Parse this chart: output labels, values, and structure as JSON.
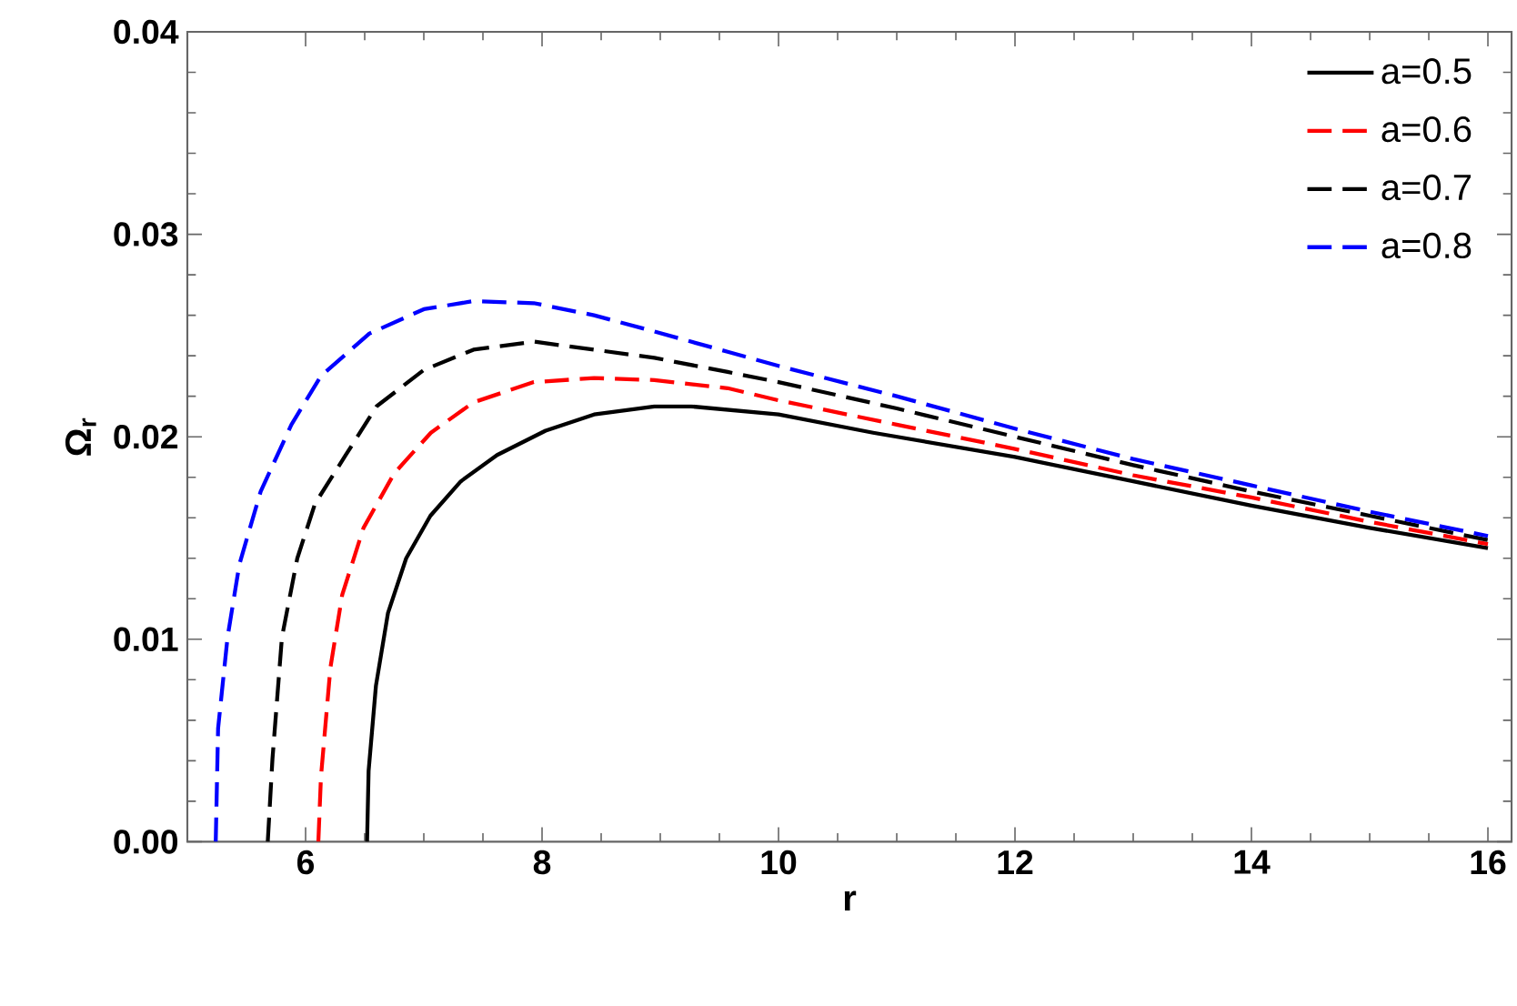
{
  "chart_data": {
    "type": "line",
    "xlabel": "r",
    "ylabel": "Ω$_{r}$",
    "xlim": [
      5,
      16.2
    ],
    "ylim": [
      0,
      0.04
    ],
    "xticks": [
      6,
      8,
      10,
      12,
      14,
      16
    ],
    "yticks": [
      {
        "value": 0,
        "label": "0.00"
      },
      {
        "value": 0.01,
        "label": "0.01"
      },
      {
        "value": 0.02,
        "label": "0.02"
      },
      {
        "value": 0.03,
        "label": "0.03"
      },
      {
        "value": 0.04,
        "label": "0.04"
      }
    ],
    "grid": false,
    "legend": "top right",
    "marker": "none",
    "series": [
      {
        "name": "a=0.5",
        "color": "#000000",
        "line_style": "solid",
        "x": [
          6.52,
          6.533,
          6.595,
          6.697,
          6.851,
          7.056,
          7.313,
          7.62,
          8.03,
          8.44,
          8.95,
          9.26,
          10,
          10.8,
          12,
          13,
          14,
          15,
          16
        ],
        "values": [
          0,
          0.0035,
          0.0077,
          0.0113,
          0.014,
          0.0161,
          0.0178,
          0.0191,
          0.0203,
          0.0211,
          0.0215,
          0.0215,
          0.0211,
          0.0202,
          0.019,
          0.0178,
          0.0166,
          0.0155,
          0.0145
        ]
      },
      {
        "name": "a=0.6",
        "color": "#ff0000",
        "line_style": "dashed",
        "x": [
          6.108,
          6.13,
          6.21,
          6.31,
          6.49,
          6.75,
          7.06,
          7.42,
          7.93,
          8.44,
          8.95,
          9.57,
          10,
          11,
          12,
          13,
          14,
          15,
          16
        ],
        "values": [
          0,
          0.0032,
          0.0086,
          0.0122,
          0.0155,
          0.0182,
          0.0202,
          0.0217,
          0.0227,
          0.0229,
          0.0228,
          0.0224,
          0.0218,
          0.0206,
          0.0194,
          0.0181,
          0.017,
          0.0158,
          0.0147
        ]
      },
      {
        "name": "a=0.7",
        "color": "#000000",
        "line_style": "dashed",
        "x": [
          5.68,
          5.72,
          5.8,
          5.93,
          6.08,
          6.34,
          6.6,
          7.0,
          7.42,
          7.93,
          8.44,
          8.95,
          9.57,
          10,
          11,
          12,
          13,
          14,
          15,
          16
        ],
        "values": [
          0,
          0.0041,
          0.0101,
          0.014,
          0.0167,
          0.0191,
          0.0215,
          0.0233,
          0.0243,
          0.0247,
          0.0243,
          0.0239,
          0.0232,
          0.0227,
          0.0214,
          0.02,
          0.0186,
          0.0173,
          0.0161,
          0.0149
        ]
      },
      {
        "name": "a=0.8",
        "color": "#0000ff",
        "line_style": "dashed",
        "x": [
          5.24,
          5.26,
          5.34,
          5.44,
          5.62,
          5.88,
          6.13,
          6.54,
          7.0,
          7.42,
          7.93,
          8.44,
          8.95,
          9.57,
          10,
          11,
          12,
          13,
          14,
          15,
          16
        ],
        "values": [
          0,
          0.0056,
          0.0101,
          0.0137,
          0.0173,
          0.0206,
          0.023,
          0.0251,
          0.0263,
          0.0267,
          0.0266,
          0.026,
          0.0252,
          0.0242,
          0.0235,
          0.022,
          0.0204,
          0.0189,
          0.0176,
          0.0163,
          0.0151
        ]
      }
    ]
  }
}
